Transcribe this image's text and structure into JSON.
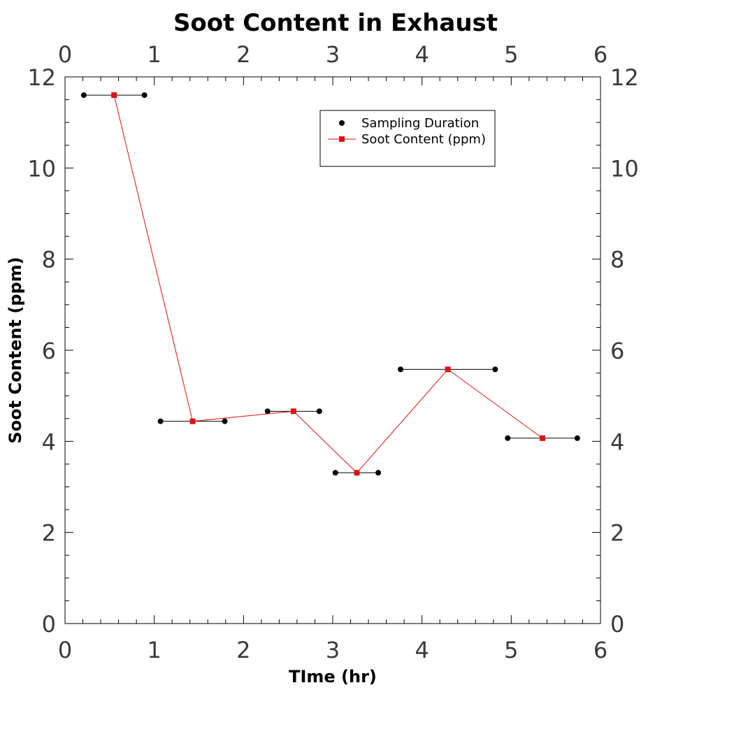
{
  "chart_data": {
    "type": "line",
    "title": "Soot Content in Exhaust",
    "xlabel": "TIme (hr)",
    "ylabel": "Soot Content (ppm)",
    "xlim": [
      0,
      6
    ],
    "ylim": [
      0,
      12
    ],
    "x_ticks": [
      "0",
      "1",
      "2",
      "3",
      "4",
      "5",
      "6"
    ],
    "y_ticks": [
      "0",
      "2",
      "4",
      "6",
      "8",
      "10",
      "12"
    ],
    "grid": false,
    "legend_position": "top-right",
    "sampling_duration": {
      "name": "Sampling Duration",
      "color": "#000000",
      "intervals": [
        {
          "start": 0.21,
          "end": 0.89,
          "y": 11.6
        },
        {
          "start": 1.07,
          "end": 1.79,
          "y": 4.44
        },
        {
          "start": 2.27,
          "end": 2.85,
          "y": 4.66
        },
        {
          "start": 3.03,
          "end": 3.51,
          "y": 3.31
        },
        {
          "start": 3.76,
          "end": 4.82,
          "y": 5.58
        },
        {
          "start": 4.96,
          "end": 5.74,
          "y": 4.07
        }
      ]
    },
    "soot_content": {
      "name": "Soot Content (ppm)",
      "color": "#dd1111",
      "points": [
        {
          "x": 0.55,
          "y": 11.6
        },
        {
          "x": 1.43,
          "y": 4.44
        },
        {
          "x": 2.56,
          "y": 4.66
        },
        {
          "x": 3.27,
          "y": 3.31
        },
        {
          "x": 4.29,
          "y": 5.58
        },
        {
          "x": 5.35,
          "y": 4.07
        }
      ]
    }
  }
}
